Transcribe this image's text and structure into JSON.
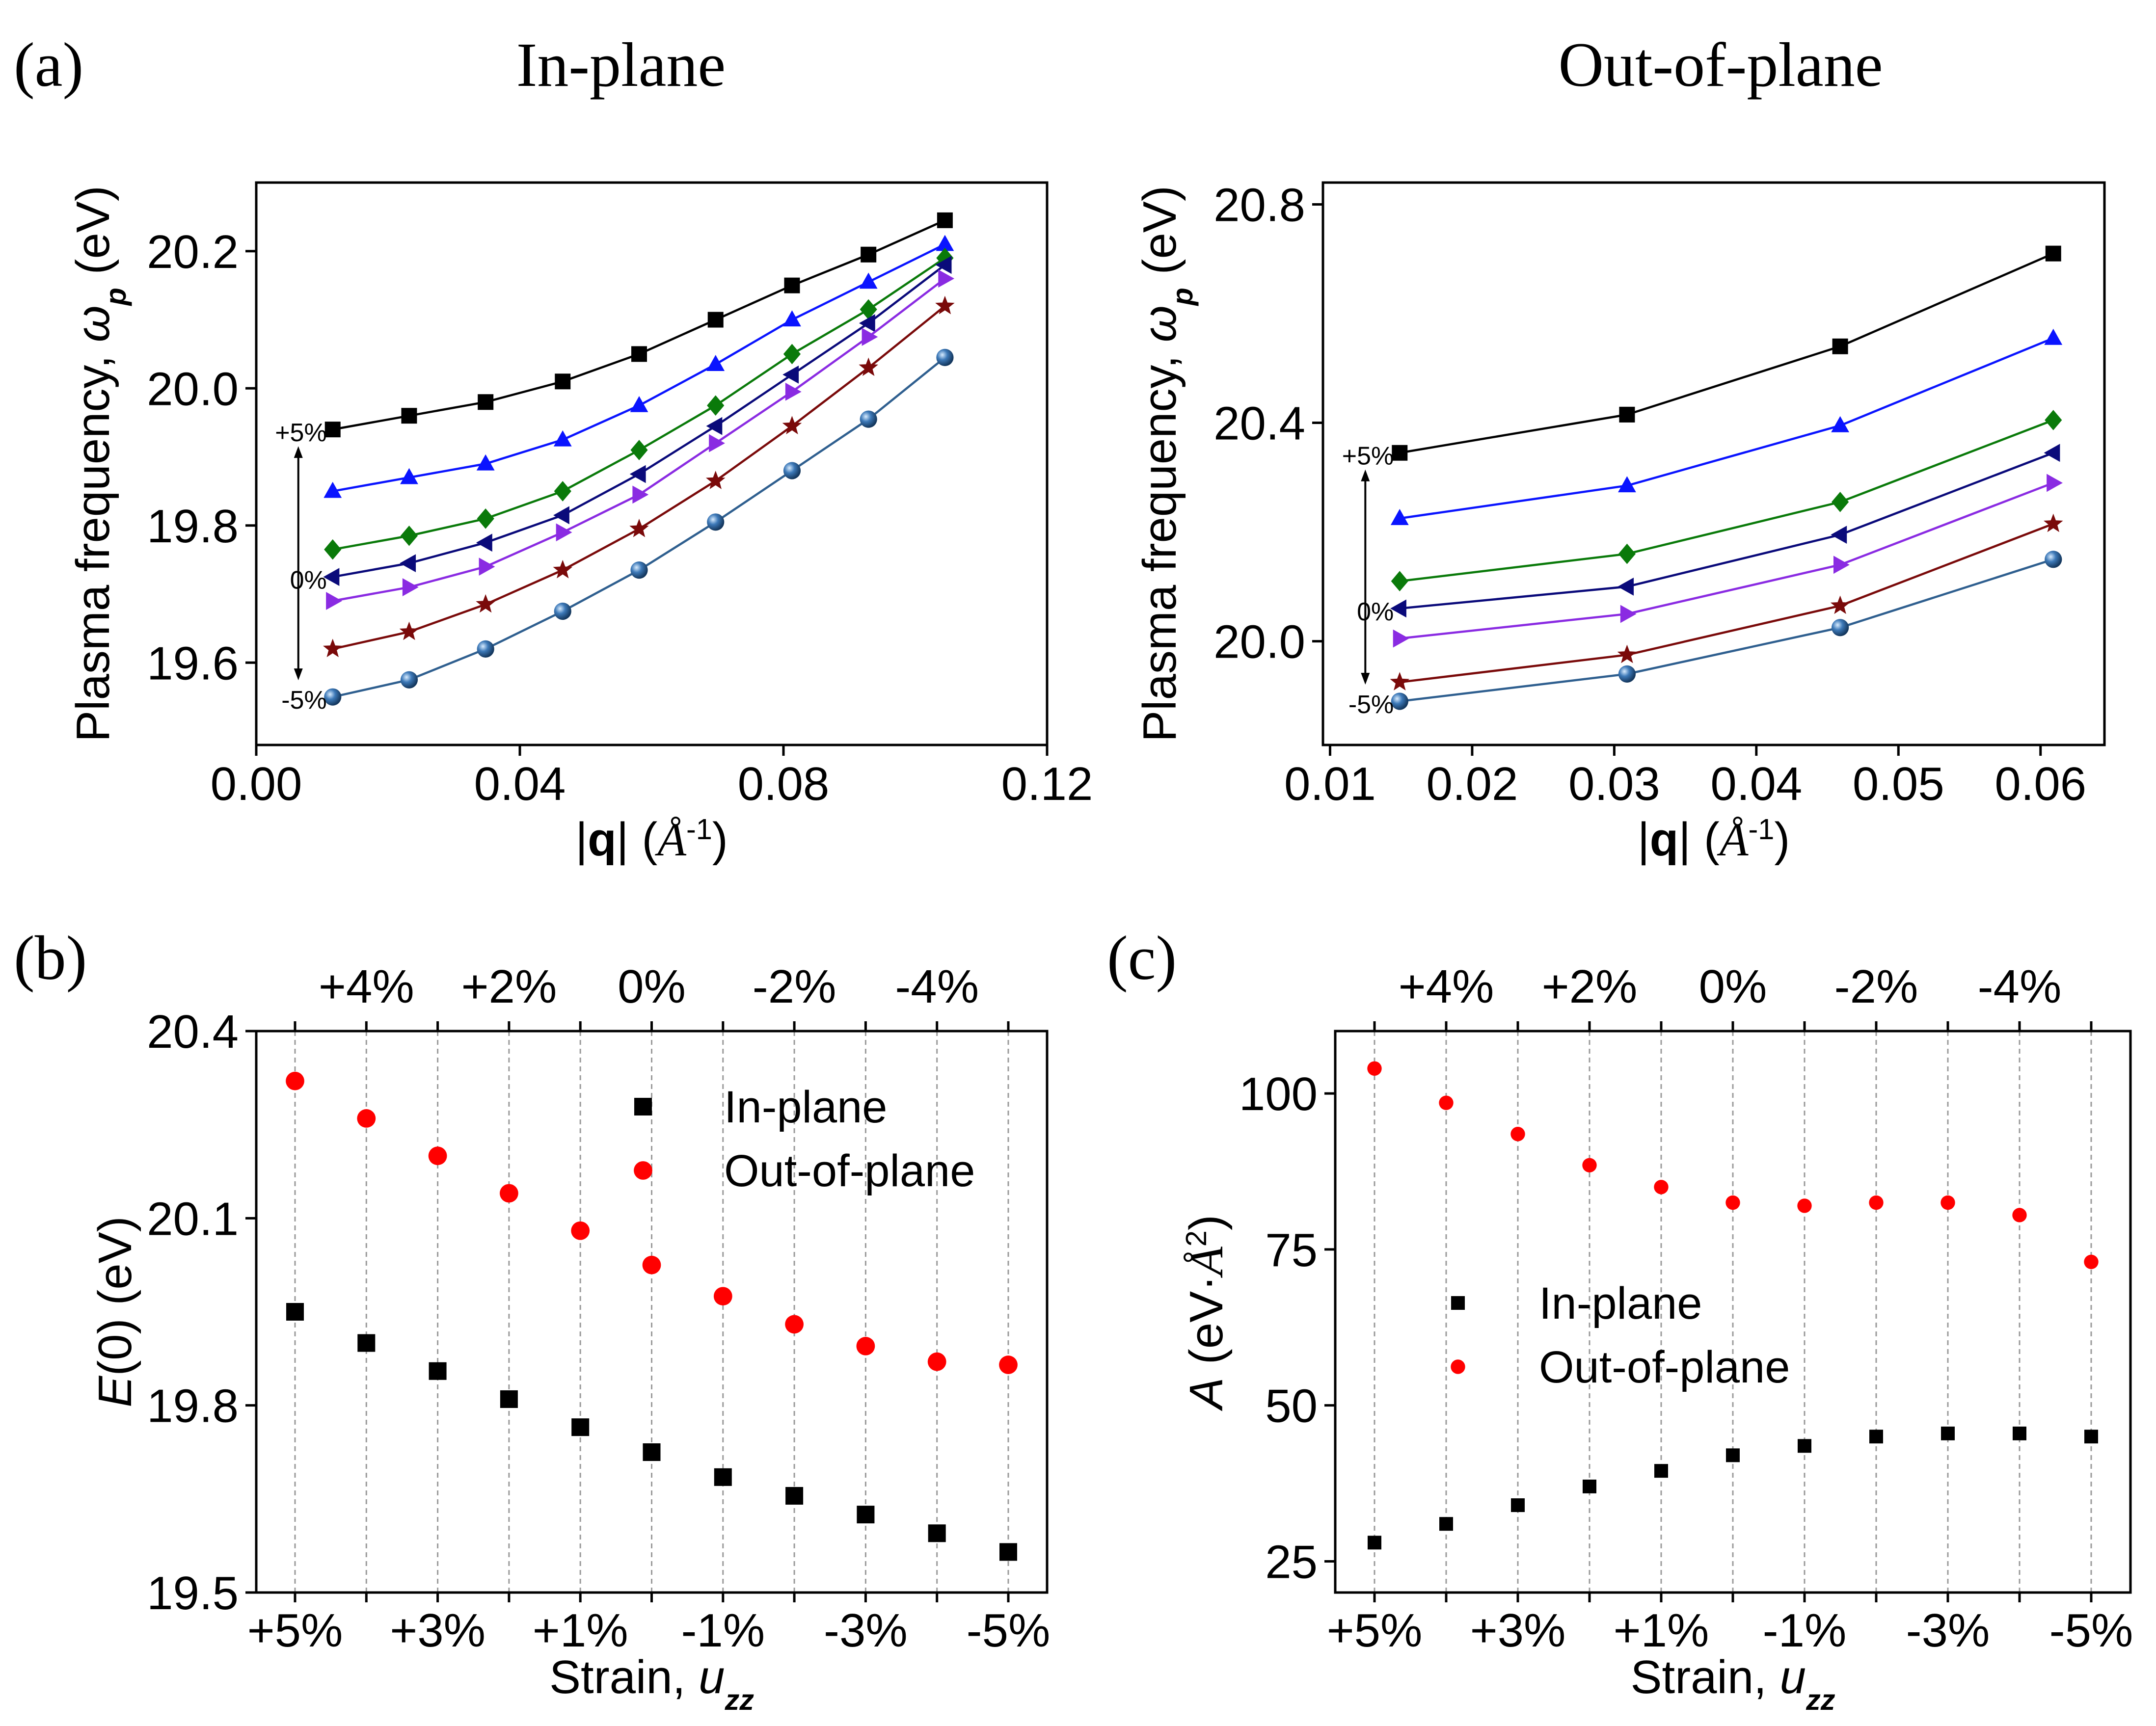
{
  "figure": {
    "panel_a_label": "(a)",
    "panel_b_label": "(b)",
    "panel_c_label": "(c)",
    "title_inplane": "In-plane",
    "title_outplane": "Out-of-plane"
  },
  "chart_data": [
    {
      "id": "a_inplane",
      "type": "line",
      "title": "In-plane",
      "xlabel": "|q| (Å⁻¹)",
      "ylabel": "Plasma frequency, ωp (eV)",
      "xlim": [
        0.0,
        0.12
      ],
      "ylim": [
        19.48,
        20.3
      ],
      "xticks": [
        0.0,
        0.04,
        0.08,
        0.12
      ],
      "xticklabels": [
        "0.00",
        "0.04",
        "0.08",
        "0.12"
      ],
      "yticks": [
        19.6,
        19.8,
        20.0,
        20.2
      ],
      "yticklabels": [
        "19.6",
        "19.8",
        "20.0",
        "20.2"
      ],
      "annotations": {
        "top": "+5%",
        "mid": "0%",
        "bottom": "-5%"
      },
      "x": [
        0.0116,
        0.0232,
        0.0348,
        0.0465,
        0.0581,
        0.0697,
        0.0813,
        0.0929,
        0.1045
      ],
      "series": [
        {
          "name": "+5%",
          "color": "#000000",
          "marker": "square",
          "values": [
            19.94,
            19.96,
            19.98,
            20.01,
            20.05,
            20.1,
            20.15,
            20.195,
            20.245
          ]
        },
        {
          "name": "+4%",
          "color": "#0a14ff",
          "marker": "triangle-up",
          "values": [
            19.85,
            19.87,
            19.89,
            19.925,
            19.975,
            20.035,
            20.1,
            20.155,
            20.21
          ]
        },
        {
          "name": "+2%",
          "color": "#0a7a0a",
          "marker": "diamond",
          "values": [
            19.765,
            19.785,
            19.81,
            19.85,
            19.91,
            19.975,
            20.05,
            20.115,
            20.19
          ]
        },
        {
          "name": "0%",
          "color": "#0a0a7a",
          "marker": "triangle-left",
          "values": [
            19.725,
            19.745,
            19.775,
            19.815,
            19.875,
            19.945,
            20.02,
            20.095,
            20.18
          ]
        },
        {
          "name": "-2%",
          "color": "#8a2be2",
          "marker": "triangle-right",
          "values": [
            19.69,
            19.71,
            19.74,
            19.79,
            19.845,
            19.92,
            19.995,
            20.075,
            20.16
          ]
        },
        {
          "name": "-4%",
          "color": "#7a0a0a",
          "marker": "star",
          "values": [
            19.62,
            19.645,
            19.685,
            19.735,
            19.795,
            19.865,
            19.945,
            20.03,
            20.12
          ]
        },
        {
          "name": "-5%",
          "color": "#2f5f8f",
          "marker": "sphere",
          "values": [
            19.55,
            19.575,
            19.62,
            19.675,
            19.735,
            19.805,
            19.88,
            19.955,
            20.045
          ]
        }
      ]
    },
    {
      "id": "a_outplane",
      "type": "line",
      "title": "Out-of-plane",
      "xlabel": "|q| (Å⁻¹)",
      "ylabel": "Plasma frequency, ωp (eV)",
      "xlim": [
        0.0095,
        0.0645
      ],
      "ylim": [
        19.81,
        20.84
      ],
      "xticks": [
        0.01,
        0.02,
        0.03,
        0.04,
        0.05,
        0.06
      ],
      "xticklabels": [
        "0.01",
        "0.02",
        "0.03",
        "0.04",
        "0.05",
        "0.06"
      ],
      "yticks": [
        20.0,
        20.4,
        20.8
      ],
      "yticklabels": [
        "20.0",
        "20.4",
        "20.8"
      ],
      "annotations": {
        "top": "+5%",
        "mid": "0%",
        "bottom": "-5%"
      },
      "x": [
        0.0149,
        0.0309,
        0.0459,
        0.0609
      ],
      "series": [
        {
          "name": "+5%",
          "color": "#000000",
          "marker": "square",
          "values": [
            20.345,
            20.415,
            20.54,
            20.71
          ]
        },
        {
          "name": "+4%",
          "color": "#0a14ff",
          "marker": "triangle-up",
          "values": [
            20.225,
            20.285,
            20.395,
            20.555
          ]
        },
        {
          "name": "+2%",
          "color": "#0a7a0a",
          "marker": "diamond",
          "values": [
            20.11,
            20.16,
            20.255,
            20.405
          ]
        },
        {
          "name": "0%",
          "color": "#0a0a7a",
          "marker": "triangle-left",
          "values": [
            20.06,
            20.1,
            20.195,
            20.345
          ]
        },
        {
          "name": "-2%",
          "color": "#8a2be2",
          "marker": "triangle-right",
          "values": [
            20.005,
            20.05,
            20.14,
            20.29
          ]
        },
        {
          "name": "-4%",
          "color": "#7a0a0a",
          "marker": "star",
          "values": [
            19.925,
            19.975,
            20.065,
            20.215
          ]
        },
        {
          "name": "-5%",
          "color": "#2f5f8f",
          "marker": "sphere",
          "values": [
            19.89,
            19.94,
            20.025,
            20.15
          ]
        }
      ]
    },
    {
      "id": "b",
      "type": "scatter",
      "ylabel": "E(0) (eV)",
      "xlabel": "Strain, u_zz",
      "categories": [
        "+5%",
        "+4%",
        "+3%",
        "+2%",
        "+1%",
        "0%",
        "-1%",
        "-2%",
        "-3%",
        "-4%",
        "-5%"
      ],
      "bottom_ticklabels": [
        "+5%",
        "+3%",
        "+1%",
        "-1%",
        "-3%",
        "-5%"
      ],
      "top_ticklabels": [
        "+4%",
        "+2%",
        "0%",
        "-2%",
        "-4%"
      ],
      "ylim": [
        19.5,
        20.4
      ],
      "yticks": [
        19.5,
        19.8,
        20.1,
        20.4
      ],
      "yticklabels": [
        "19.5",
        "19.8",
        "20.1",
        "20.4"
      ],
      "legend": "top-right",
      "series": [
        {
          "name": "In-plane",
          "color": "#000000",
          "marker": "square",
          "values": [
            19.95,
            19.9,
            19.855,
            19.81,
            19.765,
            19.725,
            19.685,
            19.655,
            19.625,
            19.595,
            19.565
          ]
        },
        {
          "name": "Out-of-plane",
          "color": "#ff0000",
          "marker": "circle",
          "values": [
            20.32,
            20.26,
            20.2,
            20.14,
            20.08,
            20.025,
            19.975,
            19.93,
            19.895,
            19.87,
            19.865
          ]
        }
      ]
    },
    {
      "id": "c",
      "type": "scatter",
      "ylabel": "A (eV·Å²)",
      "xlabel": "Strain, u_zz",
      "categories": [
        "+5%",
        "+4%",
        "+3%",
        "+2%",
        "+1%",
        "0%",
        "-1%",
        "-2%",
        "-3%",
        "-4%",
        "-5%"
      ],
      "bottom_ticklabels": [
        "+5%",
        "+3%",
        "+1%",
        "-1%",
        "-3%",
        "-5%"
      ],
      "top_ticklabels": [
        "+4%",
        "+2%",
        "0%",
        "-2%",
        "-4%"
      ],
      "ylim": [
        20,
        110
      ],
      "yticks": [
        25,
        50,
        75,
        100
      ],
      "yticklabels": [
        "25",
        "50",
        "75",
        "100"
      ],
      "legend": "middle-right",
      "series": [
        {
          "name": "In-plane",
          "color": "#000000",
          "marker": "square",
          "values": [
            28,
            31,
            34,
            37,
            39.5,
            42,
            43.5,
            45,
            45.5,
            45.5,
            45
          ]
        },
        {
          "name": "Out-of-plane",
          "color": "#ff0000",
          "marker": "circle",
          "values": [
            104,
            98.5,
            93.5,
            88.5,
            85,
            82.5,
            82,
            82.5,
            82.5,
            80.5,
            73
          ]
        }
      ]
    }
  ]
}
